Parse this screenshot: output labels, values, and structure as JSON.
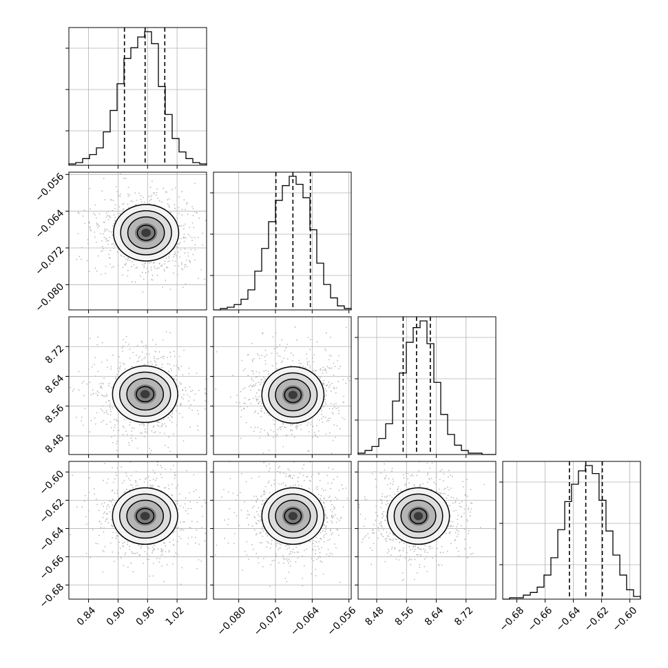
{
  "chart_data": {
    "type": "corner",
    "parameters": [
      {
        "ticks": [
          0.84,
          0.9,
          0.96,
          1.02
        ],
        "tick_labels": [
          "0.84",
          "0.90",
          "0.96",
          "1.02"
        ],
        "range": [
          0.8,
          1.08
        ],
        "quantiles": [
          0.913,
          0.955,
          0.995
        ],
        "hist": {
          "edges": [
            0.8,
            0.814,
            0.828,
            0.842,
            0.856,
            0.87,
            0.884,
            0.898,
            0.912,
            0.926,
            0.94,
            0.954,
            0.968,
            0.982,
            0.996,
            1.01,
            1.024,
            1.038,
            1.052,
            1.066,
            1.08
          ],
          "counts": [
            0.01,
            0.02,
            0.05,
            0.08,
            0.13,
            0.25,
            0.41,
            0.61,
            0.8,
            0.88,
            0.96,
            1.0,
            0.91,
            0.59,
            0.38,
            0.2,
            0.1,
            0.05,
            0.02,
            0.01
          ]
        }
      },
      {
        "ticks": [
          -0.08,
          -0.072,
          -0.064,
          -0.056
        ],
        "tick_labels": [
          "−0.080",
          "−0.072",
          "−0.064",
          "−0.056"
        ],
        "range": [
          -0.0855,
          -0.0555
        ],
        "quantiles": [
          -0.0719,
          -0.0682,
          -0.0644
        ],
        "hist": {
          "edges": [
            -0.0855,
            -0.084,
            -0.0825,
            -0.081,
            -0.0795,
            -0.078,
            -0.0765,
            -0.075,
            -0.0735,
            -0.072,
            -0.0705,
            -0.069,
            -0.0675,
            -0.066,
            -0.0645,
            -0.063,
            -0.0615,
            -0.06,
            -0.0585,
            -0.057,
            -0.0555
          ],
          "counts": [
            0.0,
            0.01,
            0.02,
            0.04,
            0.08,
            0.15,
            0.29,
            0.46,
            0.66,
            0.82,
            0.93,
            1.0,
            0.94,
            0.84,
            0.6,
            0.35,
            0.19,
            0.09,
            0.03,
            0.01
          ]
        }
      },
      {
        "ticks": [
          8.48,
          8.56,
          8.64,
          8.72
        ],
        "tick_labels": [
          "8.48",
          "8.56",
          "8.64",
          "8.72"
        ],
        "range": [
          8.43,
          8.8
        ],
        "quantiles": [
          8.551,
          8.587,
          8.624
        ],
        "hist": {
          "edges": [
            8.43,
            8.4485,
            8.467,
            8.4855,
            8.504,
            8.5225,
            8.541,
            8.5595,
            8.578,
            8.5965,
            8.615,
            8.6335,
            8.652,
            8.6705,
            8.689,
            8.7075,
            8.726,
            8.7445,
            8.763,
            8.7815,
            8.8
          ],
          "counts": [
            0.01,
            0.03,
            0.06,
            0.12,
            0.23,
            0.4,
            0.61,
            0.84,
            0.95,
            1.0,
            0.83,
            0.54,
            0.3,
            0.15,
            0.07,
            0.03,
            0.01,
            0.01,
            0.0,
            0.0
          ]
        }
      },
      {
        "ticks": [
          -0.68,
          -0.66,
          -0.64,
          -0.62,
          -0.6
        ],
        "tick_labels": [
          "−0.68",
          "−0.66",
          "−0.64",
          "−0.62",
          "−0.60"
        ],
        "range": [
          -0.69,
          -0.5925
        ],
        "quantiles": [
          -0.6428,
          -0.6312,
          -0.6195
        ],
        "hist": {
          "edges": [
            -0.69,
            -0.6851,
            -0.6803,
            -0.6754,
            -0.6705,
            -0.6656,
            -0.6608,
            -0.6559,
            -0.651,
            -0.6461,
            -0.6413,
            -0.6364,
            -0.6315,
            -0.6266,
            -0.6218,
            -0.6169,
            -0.612,
            -0.6071,
            -0.6023,
            -0.5974,
            -0.5925
          ],
          "counts": [
            0.0,
            0.01,
            0.01,
            0.03,
            0.05,
            0.09,
            0.18,
            0.31,
            0.52,
            0.73,
            0.86,
            0.96,
            1.0,
            0.94,
            0.74,
            0.51,
            0.33,
            0.18,
            0.07,
            0.02
          ]
        }
      }
    ],
    "pairs": [
      {
        "row": 1,
        "col": 0,
        "mean": [
          0.957,
          -0.0687
        ],
        "spread": [
          1.05,
          1.0
        ]
      },
      {
        "row": 2,
        "col": 0,
        "mean": [
          0.955,
          8.592
        ],
        "spread": [
          1.05,
          1.0
        ]
      },
      {
        "row": 2,
        "col": 1,
        "mean": [
          -0.0682,
          8.59
        ],
        "spread": [
          1.0,
          1.0
        ]
      },
      {
        "row": 3,
        "col": 0,
        "mean": [
          0.955,
          -0.6312
        ],
        "spread": [
          1.05,
          1.0
        ]
      },
      {
        "row": 3,
        "col": 1,
        "mean": [
          -0.0682,
          -0.6312
        ],
        "spread": [
          1.0,
          1.0
        ]
      },
      {
        "row": 3,
        "col": 2,
        "mean": [
          8.592,
          -0.6312
        ],
        "spread": [
          1.0,
          1.0
        ]
      }
    ],
    "grid": true,
    "colors": {
      "line": "#000000",
      "grid": "#b0b0b0",
      "scatter": "#b8b8b8",
      "density_dark": "#3a3a3a",
      "density_light": "#ffffff"
    }
  }
}
